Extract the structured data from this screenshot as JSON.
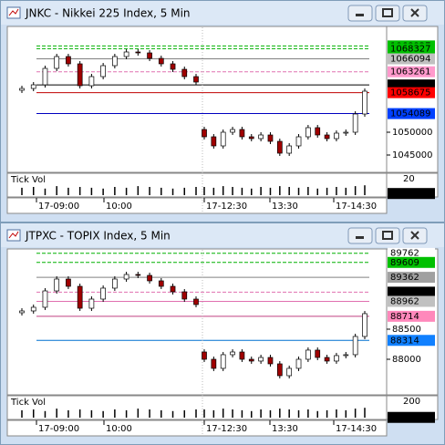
{
  "windows": [
    {
      "title": "JNKC - Nikkei 225 Index, 5 Min",
      "ylim": [
        1041400,
        1073000
      ],
      "yticks": [
        1050000,
        1045000
      ],
      "levels": [
        {
          "value": 1068927,
          "color": "#00b000",
          "label_bg": "#00c000",
          "label_color": "#000",
          "dash": true
        },
        {
          "value": 1068327,
          "color": "#00b000",
          "label_bg": "#00c000",
          "label_color": "#000",
          "dash": true
        },
        {
          "value": 1066094,
          "color": "#808080",
          "label_bg": "#c0c0c0",
          "label_color": "#000",
          "dash": false
        },
        {
          "value": 1063261,
          "color": "#e070b0",
          "label_bg": "#ff99cc",
          "label_color": "#000",
          "dash": true
        },
        {
          "value": 1060364,
          "color": "#000000",
          "label_bg": "#000000",
          "label_color": "#fff",
          "dash": false
        },
        {
          "value": 1058675,
          "color": "#c00000",
          "label_bg": "#ff0000",
          "label_color": "#fff",
          "dash": false
        },
        {
          "value": 1054089,
          "color": "#0000c0",
          "label_bg": "#0040ff",
          "label_color": "#fff",
          "dash": false
        }
      ],
      "sessions": [
        {
          "open": [
            1059200,
            1059600,
            1060400,
            1064000,
            1066600,
            1065000,
            1060200,
            1062200,
            1064600,
            1066600,
            1067600,
            1067400,
            1066200,
            1065000,
            1063800,
            1062200
          ],
          "close": [
            1059600,
            1060400,
            1064000,
            1066600,
            1065000,
            1060200,
            1062200,
            1064600,
            1066600,
            1067600,
            1067400,
            1066200,
            1065000,
            1063800,
            1062200,
            1061000
          ]
        },
        {
          "open": [
            1050600,
            1049000,
            1047000,
            1050000,
            1050600,
            1049000,
            1048600,
            1049400,
            1048000,
            1045400,
            1047000,
            1049000,
            1051000,
            1049400,
            1048600,
            1049800,
            1050000,
            1054000
          ],
          "close": [
            1049000,
            1047000,
            1050000,
            1050600,
            1049000,
            1048600,
            1049400,
            1048000,
            1045400,
            1047000,
            1049000,
            1051000,
            1049400,
            1048600,
            1049800,
            1050000,
            1054000,
            1059000
          ]
        }
      ],
      "tick_vol": {
        "label": "Tick Vol",
        "max": 20,
        "current": 2,
        "values": [
          9,
          10,
          8,
          11,
          9,
          10,
          9,
          8,
          10,
          9,
          11,
          10,
          9,
          8,
          9,
          10,
          10,
          9,
          11,
          10,
          9,
          8,
          10,
          9,
          11,
          10,
          9,
          10,
          8,
          9,
          10,
          9,
          11,
          12
        ]
      },
      "time_labels": [
        "17-09:00",
        "10:00",
        "17-12:30",
        "13:30",
        "17-14:30"
      ]
    },
    {
      "title": "JTPXC - TOPIX Index, 5 Min",
      "ylim": [
        87424,
        89818
      ],
      "yticks": [
        88500,
        88000
      ],
      "levels": [
        {
          "value": 89762,
          "color": "#00b000",
          "label_bg": "#ffffff",
          "label_color": "#000",
          "dash": true
        },
        {
          "value": 89609,
          "color": "#00b000",
          "label_bg": "#00c000",
          "label_color": "#000",
          "dash": true
        },
        {
          "value": 89362,
          "color": "#808080",
          "label_bg": "#a0a0a0",
          "label_color": "#000",
          "dash": false
        },
        {
          "value": 89115,
          "color": "#e070b0",
          "label_bg": "#000000",
          "label_color": "#fff",
          "dash": true
        },
        {
          "value": 88962,
          "color": "#e070b0",
          "label_bg": "#c0c0c0",
          "label_color": "#000",
          "dash": false
        },
        {
          "value": 88714,
          "color": "#c04080",
          "label_bg": "#ff88bb",
          "label_color": "#000",
          "dash": false
        },
        {
          "value": 88314,
          "color": "#0070d0",
          "label_bg": "#1080ff",
          "label_color": "#fff",
          "dash": false
        }
      ],
      "sessions": [
        {
          "open": [
            88773,
            88803,
            88864,
            89136,
            89333,
            89212,
            88848,
            89000,
            89182,
            89333,
            89409,
            89394,
            89303,
            89212,
            89121,
            89000
          ],
          "close": [
            88803,
            88864,
            89136,
            89333,
            89212,
            88848,
            89000,
            89182,
            89333,
            89409,
            89394,
            89303,
            89212,
            89121,
            89000,
            88909
          ]
        },
        {
          "open": [
            88121,
            88000,
            87849,
            88076,
            88121,
            88000,
            87970,
            88030,
            87924,
            87727,
            87849,
            88000,
            88152,
            88030,
            87970,
            88061,
            88076,
            88379
          ],
          "close": [
            88000,
            87849,
            88076,
            88121,
            88000,
            87970,
            88030,
            87924,
            87727,
            87849,
            88000,
            88152,
            88030,
            87970,
            88061,
            88076,
            88379,
            88758
          ]
        }
      ],
      "tick_vol": {
        "label": "Tick Vol",
        "max": 200,
        "current": 3,
        "values": [
          90,
          100,
          80,
          110,
          90,
          100,
          90,
          80,
          100,
          90,
          110,
          100,
          90,
          80,
          90,
          100,
          100,
          90,
          110,
          100,
          90,
          80,
          100,
          90,
          110,
          100,
          90,
          100,
          80,
          90,
          100,
          90,
          110,
          120
        ]
      },
      "time_labels": [
        "17-09:00",
        "10:00",
        "17-12:30",
        "13:30",
        "17-14:30"
      ]
    }
  ]
}
